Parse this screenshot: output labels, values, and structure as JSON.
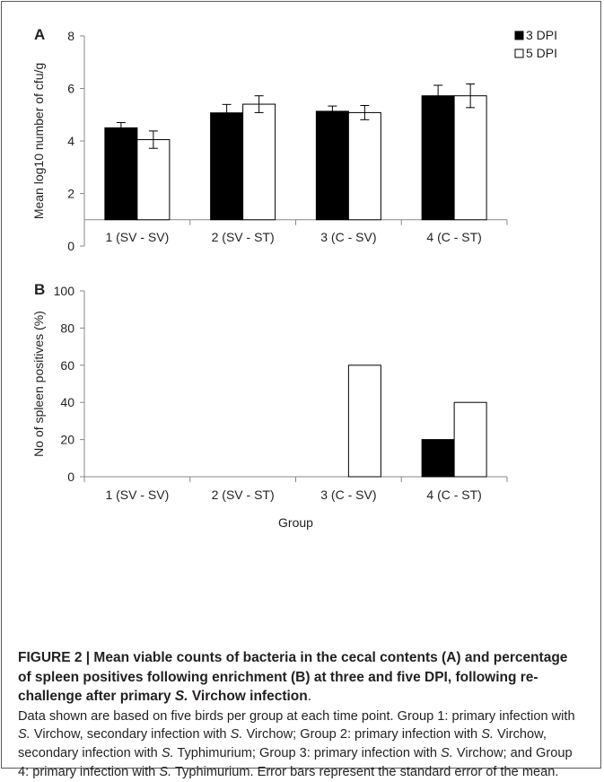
{
  "chart_data": [
    {
      "type": "bar",
      "panel_label": "A",
      "categories": [
        "1 (SV - SV)",
        "2 (SV - ST)",
        "3 (C - SV)",
        "4 (C - ST)"
      ],
      "series": [
        {
          "name": "3 DPI",
          "color": "#000000",
          "values": [
            4.5,
            5.07,
            5.13,
            5.72
          ],
          "errors": [
            0.2,
            0.32,
            0.2,
            0.4
          ]
        },
        {
          "name": "5 DPI",
          "color": "#ffffff",
          "values": [
            4.05,
            5.4,
            5.08,
            5.72
          ],
          "errors": [
            0.33,
            0.32,
            0.27,
            0.45
          ]
        }
      ],
      "ylabel": "Mean log10 number of cfu/g",
      "xlabel": "",
      "ylim": [
        0,
        8
      ],
      "yticks": [
        "0",
        "2",
        "4",
        "6",
        "8"
      ],
      "x_axis_at": 1,
      "legend_position": "top-right",
      "grid": false
    },
    {
      "type": "bar",
      "panel_label": "B",
      "categories": [
        "1 (SV - SV)",
        "2 (SV - ST)",
        "3 (C - SV)",
        "4 (C - ST)"
      ],
      "series": [
        {
          "name": "3 DPI",
          "color": "#000000",
          "values": [
            0,
            0,
            0,
            20
          ]
        },
        {
          "name": "5 DPI",
          "color": "#ffffff",
          "values": [
            0,
            0,
            60,
            40
          ]
        }
      ],
      "ylabel": "No of spleen positives (%)",
      "xlabel": "Group",
      "ylim": [
        0,
        100
      ],
      "yticks": [
        "0",
        "20",
        "40",
        "60",
        "80",
        "100"
      ],
      "grid": false
    }
  ],
  "caption": {
    "title_parts": [
      {
        "text": "FIGURE 2 | Mean viable counts of bacteria in the cecal contents (A) and percentage of spleen positives following enrichment (B) at three and five DPI, following re-challenge after primary ",
        "italic": false
      },
      {
        "text": "S.",
        "italic": true
      },
      {
        "text": " Virchow infection",
        "italic": false
      },
      {
        "text": ".",
        "italic": false,
        "bold": false
      }
    ],
    "body_parts": [
      {
        "text": "Data shown are based on five birds per group at each time point. Group 1: primary infection with ",
        "italic": false
      },
      {
        "text": "S.",
        "italic": true
      },
      {
        "text": " Virchow, secondary infection with ",
        "italic": false
      },
      {
        "text": "S.",
        "italic": true
      },
      {
        "text": " Virchow; Group 2: primary infection with ",
        "italic": false
      },
      {
        "text": "S.",
        "italic": true
      },
      {
        "text": " Virchow, secondary infection with ",
        "italic": false
      },
      {
        "text": "S.",
        "italic": true
      },
      {
        "text": " Typhimurium; Group 3: primary infection with ",
        "italic": false
      },
      {
        "text": "S.",
        "italic": true
      },
      {
        "text": " Virchow; and Group 4: primary infection with ",
        "italic": false
      },
      {
        "text": "S.",
        "italic": true
      },
      {
        "text": " Typhimurium. Error bars represent the standard error of the mean.",
        "italic": false
      }
    ]
  }
}
